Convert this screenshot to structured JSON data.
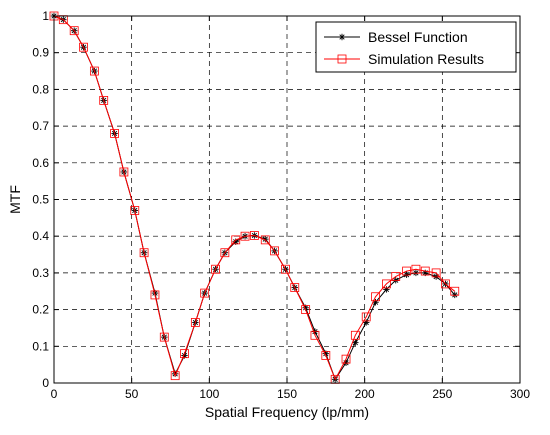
{
  "chart_data": {
    "type": "line",
    "xlabel": "Spatial Frequency (lp/mm)",
    "ylabel": "MTF",
    "xlim": [
      0,
      300
    ],
    "ylim": [
      0,
      1
    ],
    "xticks": [
      0,
      50,
      100,
      150,
      200,
      250,
      300
    ],
    "yticks": [
      0,
      0.1,
      0.2,
      0.3,
      0.4,
      0.5,
      0.6,
      0.7,
      0.8,
      0.9,
      1
    ],
    "xtick_labels": [
      "0",
      "50",
      "100",
      "150",
      "200",
      "250",
      "300"
    ],
    "ytick_labels": [
      "0",
      "0.1",
      "0.2",
      "0.3",
      "0.4",
      "0.5",
      "0.6",
      "0.7",
      "0.8",
      "0.9",
      "1"
    ],
    "grid": true,
    "legend_position": "top-right",
    "series": [
      {
        "name": "Bessel Function",
        "color": "#000000",
        "marker": "asterisk",
        "x": [
          0,
          6,
          13,
          19,
          26,
          32,
          39,
          45,
          52,
          58,
          65,
          71,
          78,
          84,
          91,
          97,
          104,
          110,
          117,
          123,
          129,
          136,
          142,
          149,
          155,
          162,
          168,
          175,
          181,
          188,
          194,
          201,
          207,
          214,
          220,
          227,
          233,
          239,
          246,
          252,
          258
        ],
        "y": [
          1.0,
          0.99,
          0.96,
          0.915,
          0.85,
          0.77,
          0.68,
          0.575,
          0.47,
          0.355,
          0.245,
          0.125,
          0.025,
          0.075,
          0.165,
          0.245,
          0.31,
          0.355,
          0.385,
          0.4,
          0.402,
          0.392,
          0.36,
          0.31,
          0.26,
          0.205,
          0.14,
          0.08,
          0.01,
          0.055,
          0.11,
          0.165,
          0.22,
          0.255,
          0.28,
          0.295,
          0.3,
          0.3,
          0.29,
          0.27,
          0.24
        ]
      },
      {
        "name": "Simulation Results",
        "color": "#ff0000",
        "marker": "square",
        "x": [
          0,
          6,
          13,
          19,
          26,
          32,
          39,
          45,
          52,
          58,
          65,
          71,
          78,
          84,
          91,
          97,
          104,
          110,
          117,
          123,
          129,
          136,
          142,
          149,
          155,
          162,
          168,
          175,
          181,
          188,
          194,
          201,
          207,
          214,
          220,
          227,
          233,
          239,
          246,
          252,
          258
        ],
        "y": [
          1.0,
          0.99,
          0.96,
          0.915,
          0.85,
          0.77,
          0.68,
          0.575,
          0.47,
          0.355,
          0.24,
          0.125,
          0.02,
          0.08,
          0.165,
          0.245,
          0.31,
          0.355,
          0.39,
          0.4,
          0.402,
          0.39,
          0.36,
          0.31,
          0.26,
          0.2,
          0.13,
          0.075,
          0.01,
          0.065,
          0.13,
          0.18,
          0.235,
          0.27,
          0.29,
          0.305,
          0.31,
          0.305,
          0.3,
          0.27,
          0.25
        ]
      }
    ]
  }
}
